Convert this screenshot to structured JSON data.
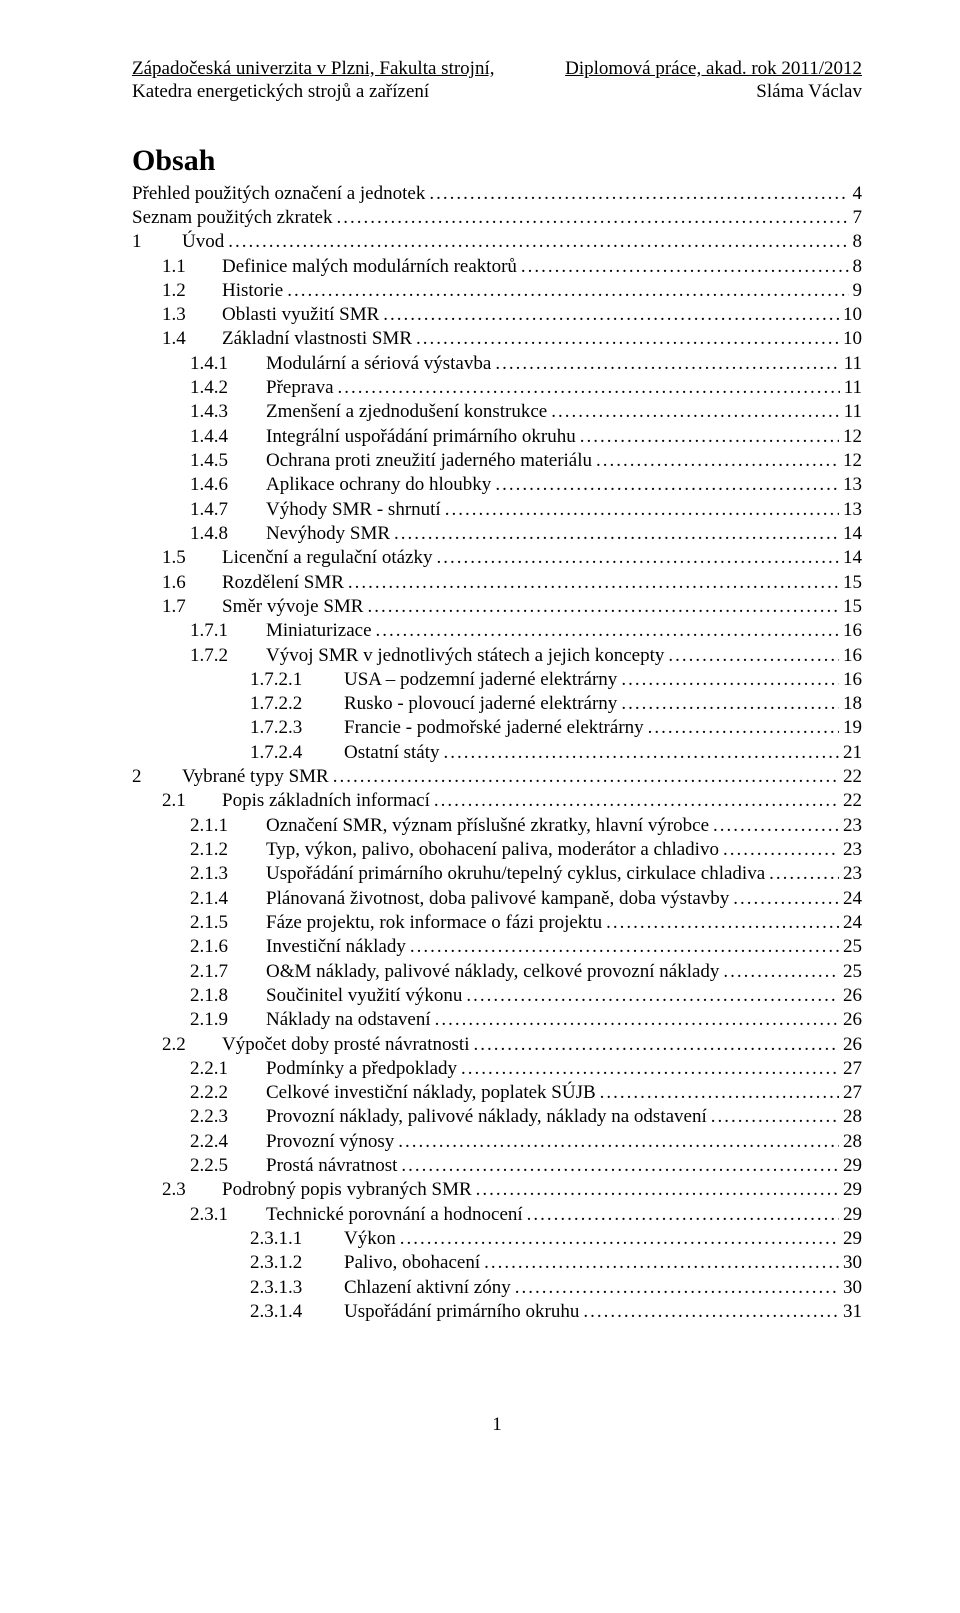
{
  "header": {
    "left_line1": "Západočeská univerzita v Plzni, Fakulta strojní,",
    "right_line1": "Diplomová práce, akad. rok 2011/2012",
    "left_line2": "Katedra energetických strojů a zařízení",
    "right_line2": "Sláma Václav"
  },
  "title": "Obsah",
  "toc": [
    {
      "indent": 0,
      "num": "",
      "gap": 0,
      "text": "Přehled použitých označení a jednotek",
      "page": "4"
    },
    {
      "indent": 0,
      "num": "",
      "gap": 0,
      "text": "Seznam použitých zkratek",
      "page": "7"
    },
    {
      "indent": 0,
      "num": "1",
      "gap": 1,
      "text": "Úvod",
      "page": "8"
    },
    {
      "indent": 1,
      "num": "1.1",
      "gap": 2,
      "text": "Definice malých modulárních reaktorů",
      "page": "8"
    },
    {
      "indent": 1,
      "num": "1.2",
      "gap": 2,
      "text": "Historie",
      "page": "9"
    },
    {
      "indent": 1,
      "num": "1.3",
      "gap": 2,
      "text": "Oblasti využití SMR",
      "page": "10"
    },
    {
      "indent": 1,
      "num": "1.4",
      "gap": 2,
      "text": "Základní vlastnosti SMR",
      "page": "10"
    },
    {
      "indent": 2,
      "num": "1.4.1",
      "gap": 3,
      "text": "Modulární a sériová výstavba",
      "page": "11"
    },
    {
      "indent": 2,
      "num": "1.4.2",
      "gap": 3,
      "text": "Přeprava",
      "page": "11"
    },
    {
      "indent": 2,
      "num": "1.4.3",
      "gap": 3,
      "text": "Zmenšení a zjednodušení konstrukce",
      "page": "11"
    },
    {
      "indent": 2,
      "num": "1.4.4",
      "gap": 3,
      "text": "Integrální uspořádání primárního okruhu",
      "page": "12"
    },
    {
      "indent": 2,
      "num": "1.4.5",
      "gap": 3,
      "text": "Ochrana proti zneužití jaderného materiálu",
      "page": "12"
    },
    {
      "indent": 2,
      "num": "1.4.6",
      "gap": 3,
      "text": "Aplikace ochrany do hloubky",
      "page": "13"
    },
    {
      "indent": 2,
      "num": "1.4.7",
      "gap": 3,
      "text": "Výhody SMR - shrnutí",
      "page": "13"
    },
    {
      "indent": 2,
      "num": "1.4.8",
      "gap": 3,
      "text": "Nevýhody SMR",
      "page": "14"
    },
    {
      "indent": 1,
      "num": "1.5",
      "gap": 2,
      "text": "Licenční a regulační otázky",
      "page": "14"
    },
    {
      "indent": 1,
      "num": "1.6",
      "gap": 2,
      "text": "Rozdělení SMR",
      "page": "15"
    },
    {
      "indent": 1,
      "num": "1.7",
      "gap": 2,
      "text": "Směr vývoje SMR",
      "page": "15"
    },
    {
      "indent": 2,
      "num": "1.7.1",
      "gap": 3,
      "text": "Miniaturizace",
      "page": "16"
    },
    {
      "indent": 2,
      "num": "1.7.2",
      "gap": 3,
      "text": "Vývoj SMR v jednotlivých státech a jejich koncepty",
      "page": "16"
    },
    {
      "indent": 3,
      "num": "1.7.2.1",
      "gap": 4,
      "text": "USA – podzemní jaderné elektrárny",
      "page": "16"
    },
    {
      "indent": 3,
      "num": "1.7.2.2",
      "gap": 4,
      "text": "Rusko - plovoucí jaderné elektrárny",
      "page": "18"
    },
    {
      "indent": 3,
      "num": "1.7.2.3",
      "gap": 4,
      "text": "Francie - podmořské jaderné elektrárny",
      "page": "19"
    },
    {
      "indent": 3,
      "num": "1.7.2.4",
      "gap": 4,
      "text": "Ostatní státy",
      "page": "21"
    },
    {
      "indent": 0,
      "num": "2",
      "gap": 1,
      "text": "Vybrané typy SMR",
      "page": "22"
    },
    {
      "indent": 1,
      "num": "2.1",
      "gap": 2,
      "text": "Popis základních informací",
      "page": "22"
    },
    {
      "indent": 2,
      "num": "2.1.1",
      "gap": 3,
      "text": "Označení SMR, význam příslušné zkratky, hlavní výrobce",
      "page": "23"
    },
    {
      "indent": 2,
      "num": "2.1.2",
      "gap": 3,
      "text": "Typ, výkon, palivo, obohacení paliva, moderátor a chladivo",
      "page": "23"
    },
    {
      "indent": 2,
      "num": "2.1.3",
      "gap": 3,
      "text": "Uspořádání primárního okruhu/tepelný cyklus, cirkulace chladiva",
      "page": "23"
    },
    {
      "indent": 2,
      "num": "2.1.4",
      "gap": 3,
      "text": "Plánovaná životnost, doba palivové kampaně, doba výstavby",
      "page": "24"
    },
    {
      "indent": 2,
      "num": "2.1.5",
      "gap": 3,
      "text": "Fáze projektu, rok informace o fázi projektu",
      "page": "24"
    },
    {
      "indent": 2,
      "num": "2.1.6",
      "gap": 3,
      "text": "Investiční náklady",
      "page": "25"
    },
    {
      "indent": 2,
      "num": "2.1.7",
      "gap": 3,
      "text": "O&M náklady, palivové náklady, celkové provozní náklady",
      "page": "25"
    },
    {
      "indent": 2,
      "num": "2.1.8",
      "gap": 3,
      "text": "Součinitel využití výkonu",
      "page": "26"
    },
    {
      "indent": 2,
      "num": "2.1.9",
      "gap": 3,
      "text": "Náklady na odstavení",
      "page": "26"
    },
    {
      "indent": 1,
      "num": "2.2",
      "gap": 2,
      "text": "Výpočet doby prosté návratnosti",
      "page": "26"
    },
    {
      "indent": 2,
      "num": "2.2.1",
      "gap": 3,
      "text": "Podmínky a předpoklady",
      "page": "27"
    },
    {
      "indent": 2,
      "num": "2.2.2",
      "gap": 3,
      "text": "Celkové investiční náklady, poplatek SÚJB",
      "page": "27"
    },
    {
      "indent": 2,
      "num": "2.2.3",
      "gap": 3,
      "text": "Provozní náklady, palivové náklady, náklady na odstavení",
      "page": "28"
    },
    {
      "indent": 2,
      "num": "2.2.4",
      "gap": 3,
      "text": "Provozní výnosy",
      "page": "28"
    },
    {
      "indent": 2,
      "num": "2.2.5",
      "gap": 3,
      "text": "Prostá návratnost",
      "page": "29"
    },
    {
      "indent": 1,
      "num": "2.3",
      "gap": 2,
      "text": "Podrobný popis vybraných SMR",
      "page": "29"
    },
    {
      "indent": 2,
      "num": "2.3.1",
      "gap": 3,
      "text": "Technické porovnání a hodnocení",
      "page": "29"
    },
    {
      "indent": 3,
      "num": "2.3.1.1",
      "gap": 4,
      "text": "Výkon",
      "page": "29"
    },
    {
      "indent": 3,
      "num": "2.3.1.2",
      "gap": 4,
      "text": "Palivo, obohacení",
      "page": "30"
    },
    {
      "indent": 3,
      "num": "2.3.1.3",
      "gap": 4,
      "text": "Chlazení aktivní zóny",
      "page": "30"
    },
    {
      "indent": 3,
      "num": "2.3.1.4",
      "gap": 4,
      "text": "Uspořádání primárního okruhu",
      "page": "31"
    }
  ],
  "page_number": "1"
}
